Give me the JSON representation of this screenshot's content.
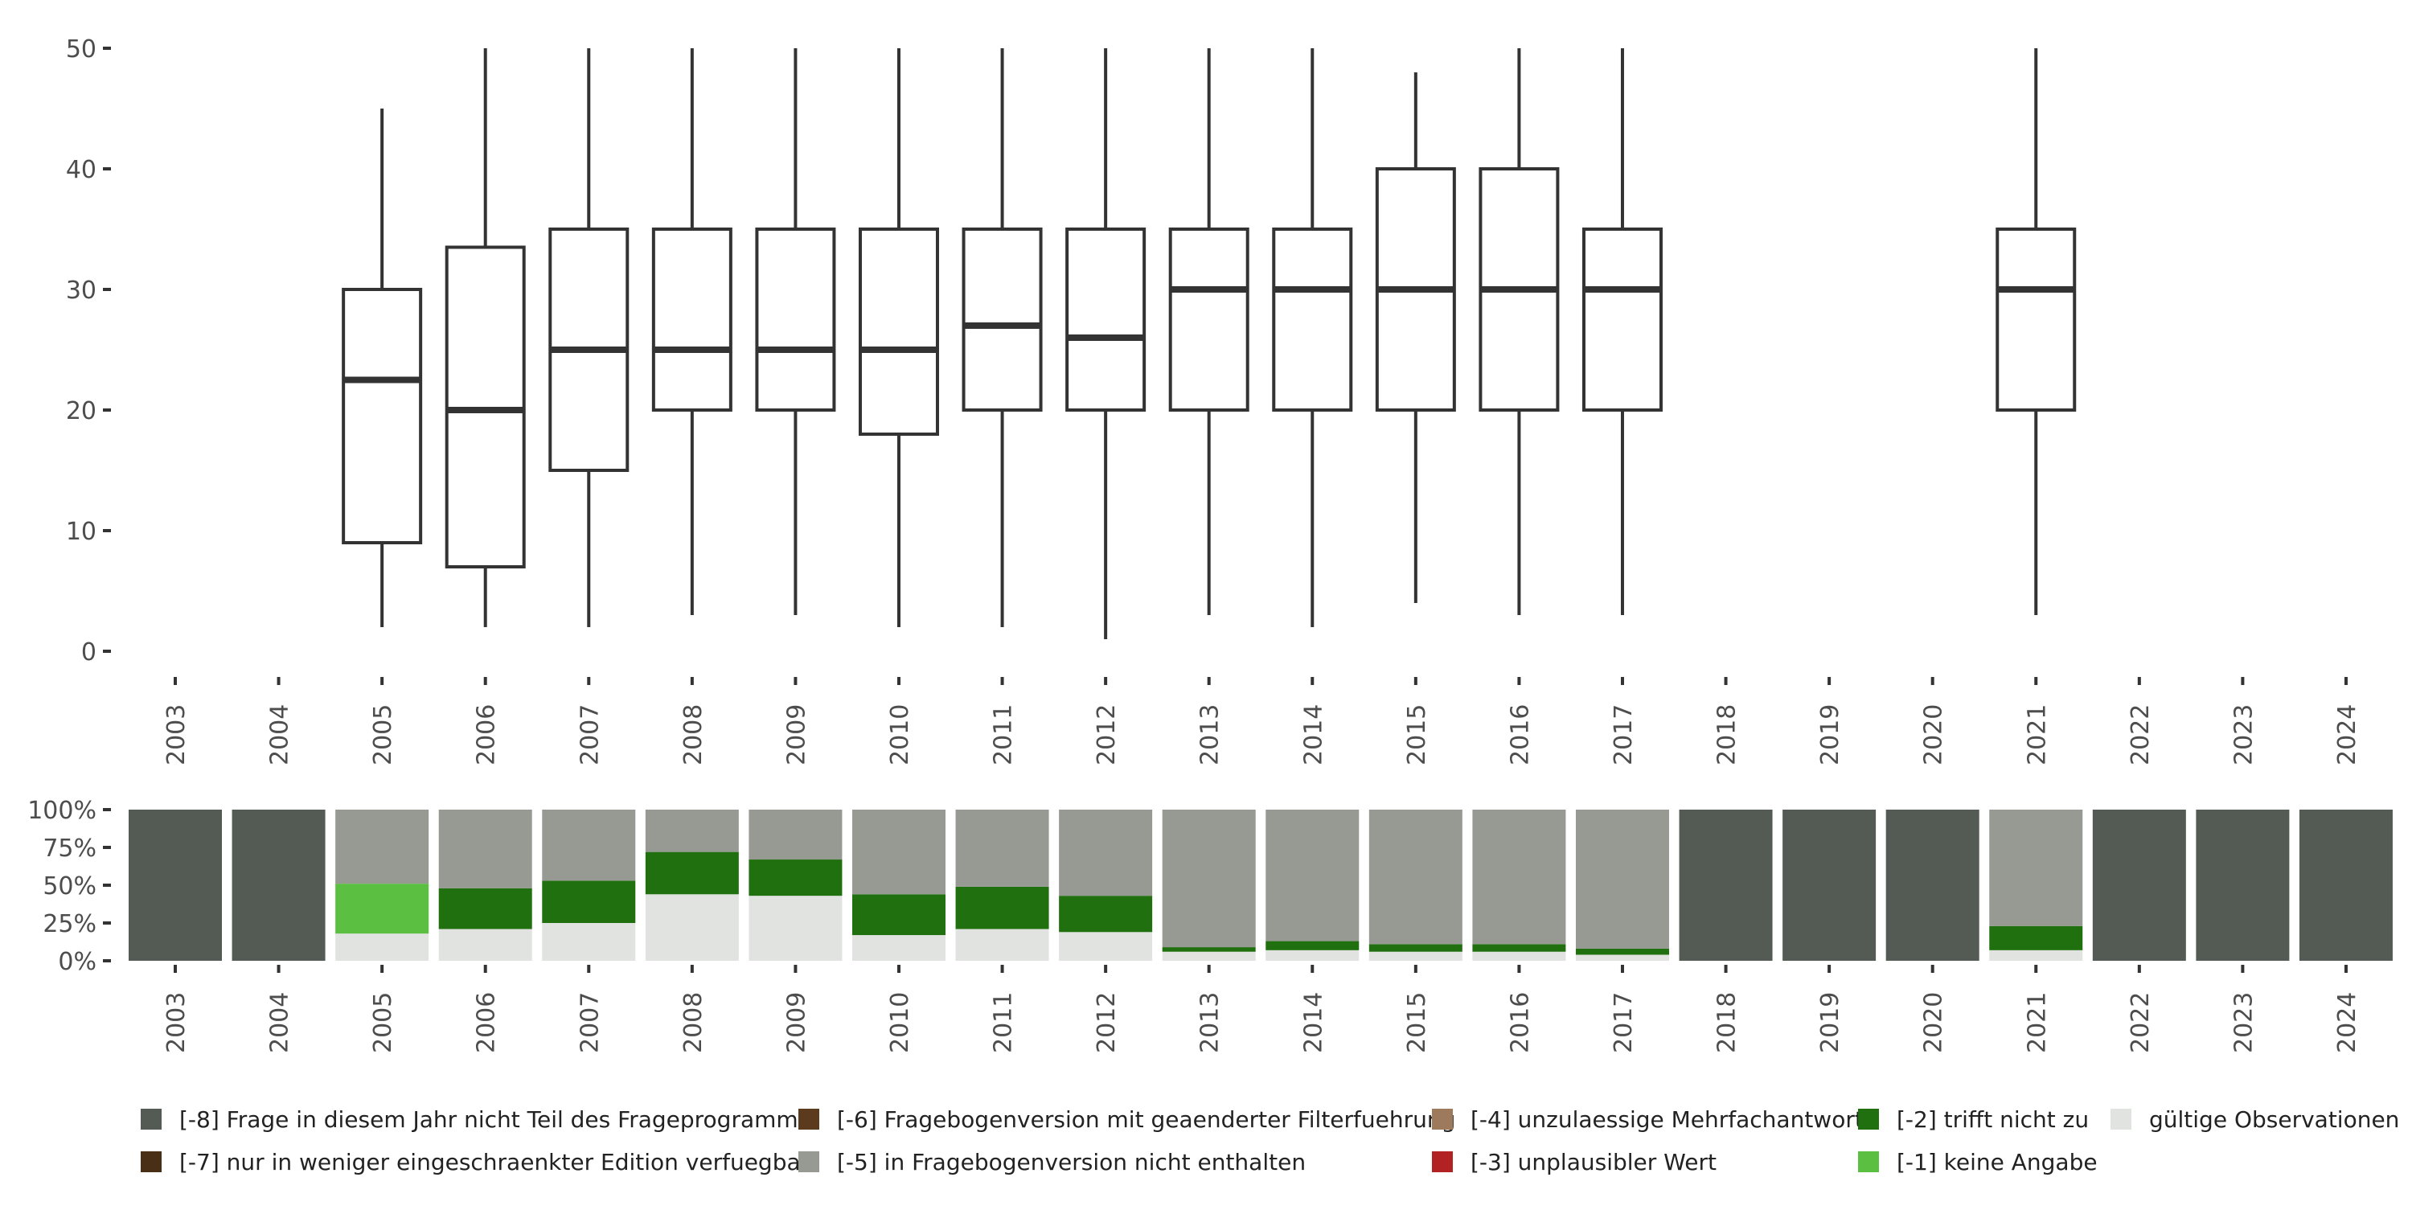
{
  "chart_data": [
    {
      "type": "boxplot",
      "title": "",
      "xlabel": "",
      "ylabel": "",
      "ylim": [
        0,
        50
      ],
      "y_ticks": [
        "0",
        "10",
        "20",
        "30",
        "40",
        "50"
      ],
      "y_tick_values": [
        0,
        10,
        20,
        30,
        40,
        50
      ],
      "categories": [
        "2003",
        "2004",
        "2005",
        "2006",
        "2007",
        "2008",
        "2009",
        "2010",
        "2011",
        "2012",
        "2013",
        "2014",
        "2015",
        "2016",
        "2017",
        "2018",
        "2019",
        "2020",
        "2021",
        "2022",
        "2023",
        "2024"
      ],
      "boxes": [
        {
          "year": "2005",
          "min": 2,
          "q1": 9,
          "median": 22.5,
          "q3": 30,
          "max": 45
        },
        {
          "year": "2006",
          "min": 2,
          "q1": 7,
          "median": 20,
          "q3": 33.5,
          "max": 50
        },
        {
          "year": "2007",
          "min": 2,
          "q1": 15,
          "median": 25,
          "q3": 35,
          "max": 50
        },
        {
          "year": "2008",
          "min": 3,
          "q1": 20,
          "median": 25,
          "q3": 35,
          "max": 50
        },
        {
          "year": "2009",
          "min": 3,
          "q1": 20,
          "median": 25,
          "q3": 35,
          "max": 50
        },
        {
          "year": "2010",
          "min": 2,
          "q1": 18,
          "median": 25,
          "q3": 35,
          "max": 50
        },
        {
          "year": "2011",
          "min": 2,
          "q1": 20,
          "median": 27,
          "q3": 35,
          "max": 50
        },
        {
          "year": "2012",
          "min": 1,
          "q1": 20,
          "median": 26,
          "q3": 35,
          "max": 50
        },
        {
          "year": "2013",
          "min": 3,
          "q1": 20,
          "median": 30,
          "q3": 35,
          "max": 50
        },
        {
          "year": "2014",
          "min": 2,
          "q1": 20,
          "median": 30,
          "q3": 35,
          "max": 50
        },
        {
          "year": "2015",
          "min": 4,
          "q1": 20,
          "median": 30,
          "q3": 40,
          "max": 48
        },
        {
          "year": "2016",
          "min": 3,
          "q1": 20,
          "median": 30,
          "q3": 40,
          "max": 50
        },
        {
          "year": "2017",
          "min": 3,
          "q1": 20,
          "median": 30,
          "q3": 35,
          "max": 50
        },
        {
          "year": "2021",
          "min": 3,
          "q1": 20,
          "median": 30,
          "q3": 35,
          "max": 50
        }
      ]
    },
    {
      "type": "bar",
      "stacked": true,
      "percent": true,
      "ylim": [
        0,
        100
      ],
      "y_ticks": [
        "0%",
        "25%",
        "50%",
        "75%",
        "100%"
      ],
      "y_tick_values": [
        0,
        25,
        50,
        75,
        100
      ],
      "categories": [
        "2003",
        "2004",
        "2005",
        "2006",
        "2007",
        "2008",
        "2009",
        "2010",
        "2011",
        "2012",
        "2013",
        "2014",
        "2015",
        "2016",
        "2017",
        "2018",
        "2019",
        "2020",
        "2021",
        "2022",
        "2023",
        "2024"
      ],
      "series": [
        {
          "name": "gültige Observationen",
          "color": "#e0e3df",
          "values": [
            0,
            0,
            18,
            21,
            25,
            44,
            43,
            17,
            21,
            19,
            6,
            7,
            6,
            6,
            4,
            0,
            0,
            0,
            7,
            0,
            0,
            0
          ]
        },
        {
          "name": "[-1] keine Angabe",
          "color": "#5bbf42",
          "values": [
            0,
            0,
            33,
            0,
            0,
            0,
            0,
            0,
            0,
            0,
            0,
            0,
            0,
            0,
            0,
            0,
            0,
            0,
            0,
            0,
            0,
            0
          ]
        },
        {
          "name": "[-2] trifft nicht zu",
          "color": "#21700f",
          "values": [
            0,
            0,
            0,
            27,
            28,
            28,
            24,
            27,
            28,
            24,
            3,
            6,
            5,
            5,
            4,
            0,
            0,
            0,
            16,
            0,
            0,
            0
          ]
        },
        {
          "name": "[-5] in Fragebogenversion nicht enthalten",
          "color": "#969a93",
          "values": [
            0,
            0,
            49,
            52,
            47,
            28,
            33,
            56,
            51,
            57,
            91,
            87,
            89,
            89,
            92,
            0,
            0,
            0,
            77,
            0,
            0,
            0
          ]
        },
        {
          "name": "[-8] Frage in diesem Jahr nicht Teil des Frageprogramms",
          "color": "#545b54",
          "values": [
            100,
            100,
            0,
            0,
            0,
            0,
            0,
            0,
            0,
            0,
            0,
            0,
            0,
            0,
            0,
            100,
            100,
            100,
            0,
            100,
            100,
            100
          ]
        }
      ]
    }
  ],
  "legend": [
    {
      "label": "[-8] Frage in diesem Jahr nicht Teil des Frageprogramms",
      "color": "#545b54"
    },
    {
      "label": "[-7] nur in weniger eingeschraenkter Edition verfuegbar",
      "color": "#4a2f17"
    },
    {
      "label": "[-6] Fragebogenversion mit geaenderter Filterfuehrung",
      "color": "#5c3a1e"
    },
    {
      "label": "[-5] in Fragebogenversion nicht enthalten",
      "color": "#969a93"
    },
    {
      "label": "[-4] unzulaessige Mehrfachantwort",
      "color": "#9c7a5b"
    },
    {
      "label": "[-3] unplausibler Wert",
      "color": "#b22222"
    },
    {
      "label": "[-2] trifft nicht zu",
      "color": "#21700f"
    },
    {
      "label": "[-1] keine Angabe",
      "color": "#5bbf42"
    },
    {
      "label": "gültige Observationen",
      "color": "#e0e3df"
    }
  ]
}
